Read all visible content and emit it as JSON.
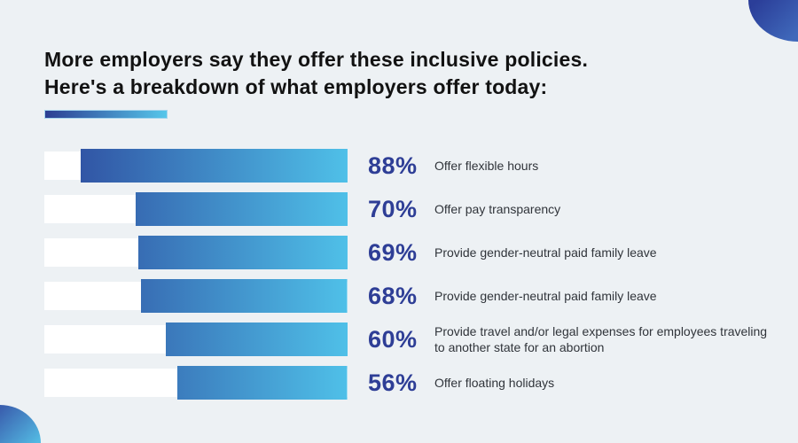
{
  "page": {
    "background_color": "#edf1f4",
    "accent_dark_blue": "#2d479c",
    "accent_light_blue": "#4fc0e8",
    "percent_text_color": "#2e3e96"
  },
  "header": {
    "title_line1": "More employers say they offer these inclusive policies.",
    "title_line2": "Here's a breakdown of what employers offer today:"
  },
  "chart_data": {
    "type": "bar",
    "orientation": "horizontal",
    "unit": "percent",
    "value_range": [
      0,
      100
    ],
    "legend": "none",
    "grid": false,
    "title": "More employers say they offer these inclusive policies. Here's a breakdown of what employers offer today:",
    "categories": [
      "Offer flexible hours",
      "Offer pay transparency",
      "Provide gender-neutral paid family leave",
      "Provide gender-neutral paid family leave",
      "Provide travel and/or legal expenses for employees traveling to another state for an abortion",
      "Offer floating holidays"
    ],
    "values": [
      88,
      70,
      69,
      68,
      60,
      56
    ],
    "rows": [
      {
        "value": 88,
        "percent_label": "88%",
        "label": "Offer flexible hours"
      },
      {
        "value": 70,
        "percent_label": "70%",
        "label": "Offer pay transparency"
      },
      {
        "value": 69,
        "percent_label": "69%",
        "label": "Provide gender-neutral paid family leave"
      },
      {
        "value": 68,
        "percent_label": "68%",
        "label": "Provide gender-neutral paid family leave"
      },
      {
        "value": 60,
        "percent_label": "60%",
        "label": "Provide travel and/or legal expenses for employees traveling to another state for an abortion"
      },
      {
        "value": 56,
        "percent_label": "56%",
        "label": "Offer floating holidays"
      }
    ],
    "bar_style": {
      "track_color": "#ffffff",
      "fill_gradient": [
        "#2d479c",
        "#4fc0e8"
      ],
      "fill_aligned": "right"
    }
  }
}
